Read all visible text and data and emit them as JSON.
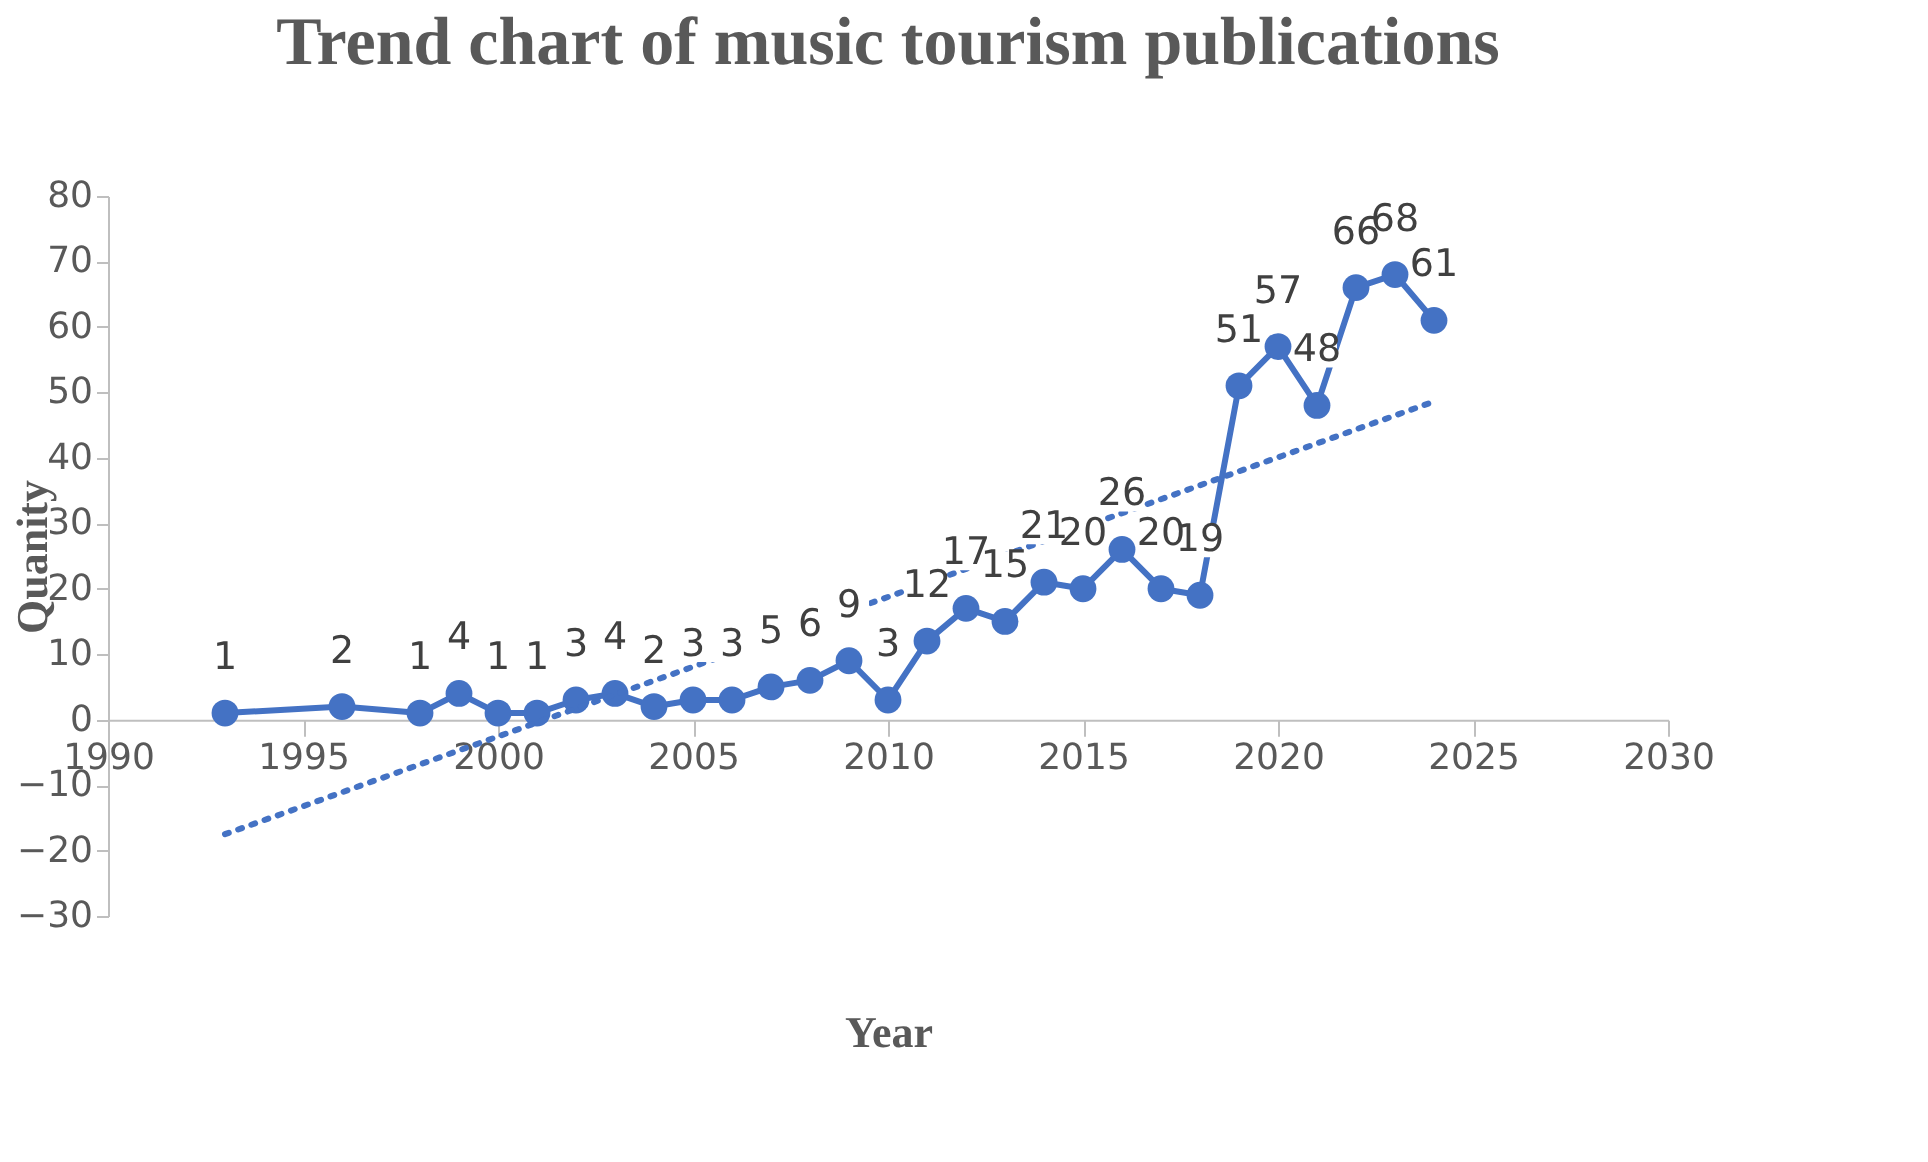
{
  "chart_data": {
    "type": "line",
    "title": "Trend chart of music tourism publications",
    "xlabel": "Year",
    "ylabel": "Quanity",
    "xlim": [
      1990,
      2030
    ],
    "xticks": [
      1990,
      1995,
      2000,
      2005,
      2010,
      2015,
      2020,
      2025,
      2030
    ],
    "ylim": [
      -30,
      80
    ],
    "yticks": [
      -30,
      -20,
      -10,
      0,
      10,
      20,
      30,
      40,
      50,
      60,
      70,
      80
    ],
    "grid": false,
    "series": [
      {
        "color": "#4472c4",
        "marker": "circle",
        "line_style": "solid",
        "x": [
          1993,
          1996,
          1998,
          1999,
          2000,
          2001,
          2002,
          2003,
          2004,
          2005,
          2006,
          2007,
          2008,
          2009,
          2010,
          2011,
          2012,
          2013,
          2014,
          2015,
          2016,
          2017,
          2018,
          2019,
          2020,
          2021,
          2022,
          2023,
          2024
        ],
        "values": [
          1,
          2,
          1,
          4,
          1,
          1,
          3,
          4,
          2,
          3,
          3,
          5,
          6,
          9,
          3,
          12,
          17,
          15,
          21,
          20,
          26,
          20,
          19,
          51,
          57,
          48,
          66,
          68,
          61
        ],
        "value_labels": [
          "1",
          "2",
          "1",
          "4",
          "1",
          "1",
          "3",
          "4",
          "2",
          "3",
          "3",
          "5",
          "6",
          "9",
          "3",
          "12",
          "17",
          "15",
          "21",
          "20",
          "26",
          "20",
          "19",
          "51",
          "57",
          "48",
          "66",
          "68",
          "61"
        ]
      },
      {
        "type": "line",
        "color": "#4472c4",
        "marker": "none",
        "line_style": "dotted",
        "x": [
          1993,
          2024
        ],
        "values": [
          -17.5,
          48.6
        ]
      }
    ]
  }
}
